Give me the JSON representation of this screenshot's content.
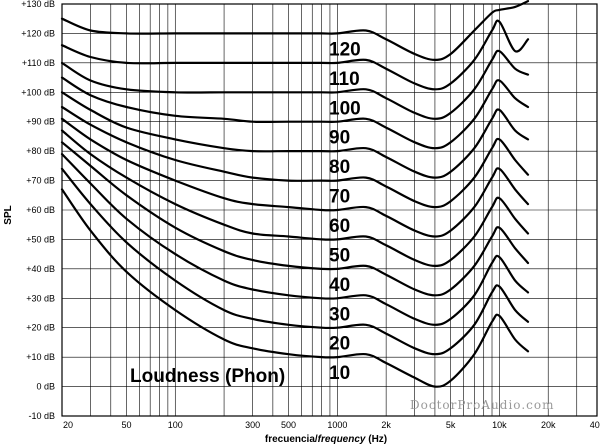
{
  "chart_data": {
    "type": "line",
    "title": "Loudness (Phon)",
    "xlabel_es": "frecuencia/",
    "xlabel_en": "frequency",
    "xlabel_unit": " (Hz)",
    "ylabel": "SPL",
    "x_scale": "log",
    "xlim": [
      20,
      40000
    ],
    "ylim": [
      -10,
      130
    ],
    "grid": true,
    "legend": "none",
    "x_ticks": [
      {
        "v": 20,
        "label": "20"
      },
      {
        "v": 50,
        "label": "50"
      },
      {
        "v": 100,
        "label": "100"
      },
      {
        "v": 300,
        "label": "300"
      },
      {
        "v": 500,
        "label": "500"
      },
      {
        "v": 1000,
        "label": "1000"
      },
      {
        "v": 2000,
        "label": "2k"
      },
      {
        "v": 5000,
        "label": "5k"
      },
      {
        "v": 10000,
        "label": "10k"
      },
      {
        "v": 20000,
        "label": "20k"
      },
      {
        "v": 40000,
        "label": "40k"
      }
    ],
    "y_ticks": [
      {
        "v": 130,
        "label": "+130 dB"
      },
      {
        "v": 120,
        "label": "+120 dB"
      },
      {
        "v": 110,
        "label": "+110 dB"
      },
      {
        "v": 100,
        "label": "+100 dB"
      },
      {
        "v": 90,
        "label": "+90 dB"
      },
      {
        "v": 80,
        "label": "+80 dB"
      },
      {
        "v": 70,
        "label": "+70 dB"
      },
      {
        "v": 60,
        "label": "+60 dB"
      },
      {
        "v": 50,
        "label": "+50 dB"
      },
      {
        "v": 40,
        "label": "+40 dB"
      },
      {
        "v": 30,
        "label": "+30 dB"
      },
      {
        "v": 20,
        "label": "+20 dB"
      },
      {
        "v": 10,
        "label": "+10 dB"
      },
      {
        "v": 0,
        "label": "0 dB"
      },
      {
        "v": -10,
        "label": "-10 dB"
      }
    ],
    "x": [
      20,
      30,
      50,
      100,
      200,
      300,
      500,
      800,
      1000,
      1500,
      2000,
      3000,
      4000,
      5000,
      7000,
      9000,
      10000,
      12500,
      15000
    ],
    "series": [
      {
        "name": "10",
        "label": "10",
        "values": [
          67,
          53,
          39,
          26,
          16,
          13,
          11,
          10,
          10,
          11,
          8,
          3,
          0,
          2,
          11,
          22,
          24,
          16,
          12
        ]
      },
      {
        "name": "20",
        "label": "20",
        "values": [
          74,
          62,
          49,
          36,
          26,
          23,
          21,
          20,
          20,
          21,
          18,
          13,
          11,
          13,
          21,
          32,
          34,
          26,
          22
        ]
      },
      {
        "name": "30",
        "label": "30",
        "values": [
          79,
          69,
          57,
          45,
          36,
          33,
          31,
          30,
          30,
          31,
          28,
          23,
          21,
          23,
          31,
          42,
          44,
          36,
          32
        ]
      },
      {
        "name": "40",
        "label": "40",
        "values": [
          83,
          75,
          65,
          54,
          46,
          43,
          41,
          40,
          40,
          41,
          38,
          33,
          31,
          33,
          41,
          51,
          54,
          47,
          42
        ]
      },
      {
        "name": "50",
        "label": "50",
        "values": [
          87,
          79,
          71,
          62,
          55,
          52,
          51,
          50,
          50,
          51,
          48,
          43,
          41,
          43,
          51,
          61,
          64,
          57,
          52
        ]
      },
      {
        "name": "60",
        "label": "60",
        "values": [
          91,
          84,
          77,
          70,
          64,
          62,
          61,
          60,
          60,
          61,
          58,
          53,
          51,
          53,
          61,
          71,
          74,
          67,
          62
        ]
      },
      {
        "name": "70",
        "label": "70",
        "values": [
          95,
          89,
          83,
          77,
          73,
          71,
          70,
          70,
          70,
          71,
          68,
          63,
          61,
          63,
          71,
          81,
          84,
          77,
          72
        ]
      },
      {
        "name": "80",
        "label": "80",
        "values": [
          100,
          94,
          88,
          84,
          81,
          80,
          80,
          80,
          80,
          81,
          78,
          73,
          71,
          73,
          81,
          91,
          94,
          87,
          84
        ]
      },
      {
        "name": "90",
        "label": "90",
        "values": [
          105,
          99,
          95,
          92,
          91,
          90,
          90,
          90,
          90,
          91,
          88,
          83,
          81,
          83,
          91,
          101,
          104,
          98,
          95
        ]
      },
      {
        "name": "100",
        "label": "100",
        "values": [
          110,
          104,
          101,
          100,
          100,
          100,
          100,
          100,
          100,
          101,
          98,
          93,
          91,
          93,
          101,
          111,
          114,
          108,
          106
        ]
      },
      {
        "name": "110",
        "label": "110",
        "values": [
          116,
          112,
          110,
          110,
          110,
          110,
          110,
          110,
          110,
          111,
          108,
          103,
          101,
          103,
          111,
          121,
          124,
          114,
          118
        ]
      },
      {
        "name": "120",
        "label": "120",
        "values": [
          125,
          121,
          120,
          120,
          120,
          120,
          120,
          120,
          120,
          121,
          118,
          113,
          111,
          113,
          121,
          127,
          128,
          129,
          131
        ]
      }
    ]
  },
  "watermark": "DoctorProAudio.com"
}
